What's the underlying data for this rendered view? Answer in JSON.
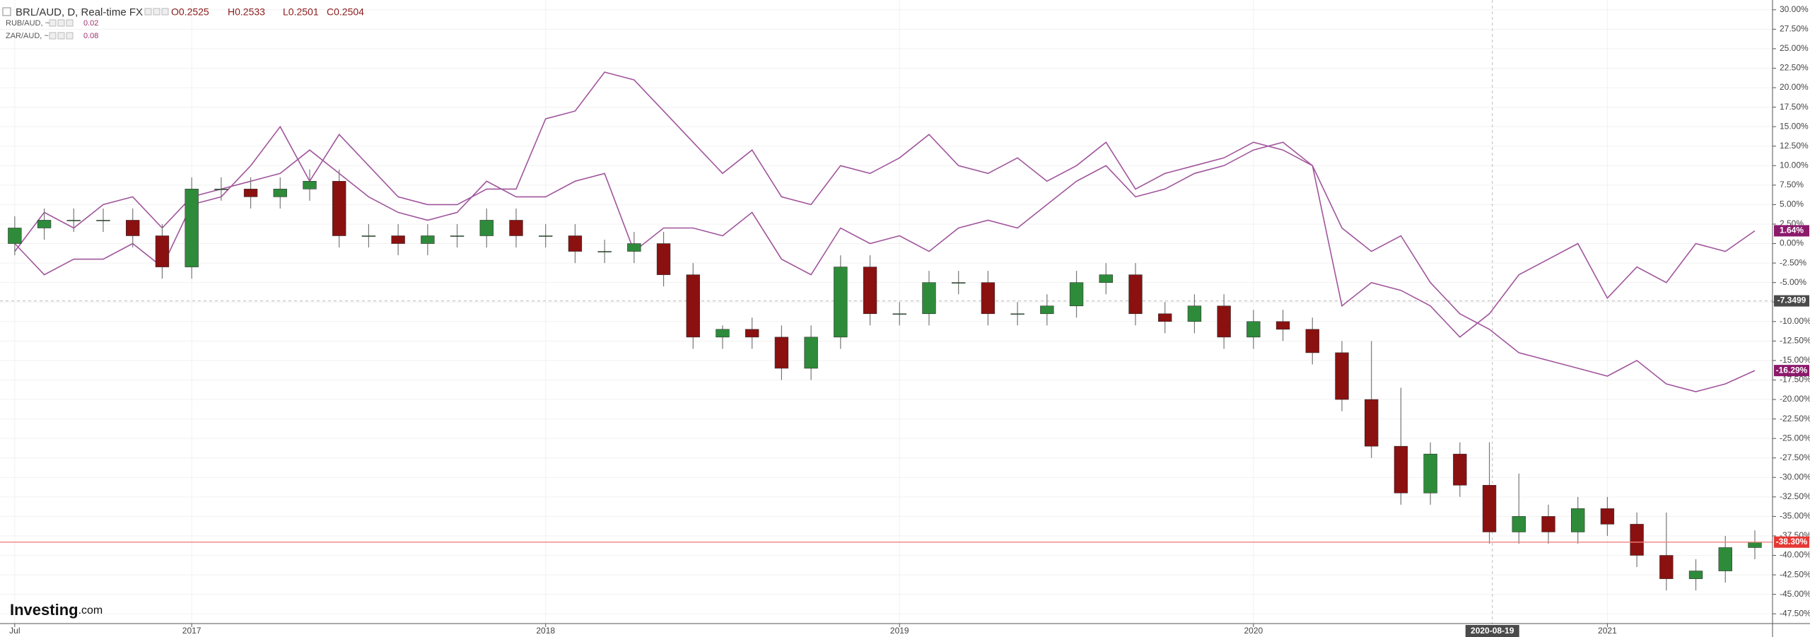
{
  "chart_data": {
    "type": "candlestick",
    "title": "BRL/AUD, D, Real-time FX",
    "ohlc_labels": [
      "O0.2525",
      "H0.2533",
      "L0.2501",
      "C0.2504"
    ],
    "logo": "Investing",
    "logo_suffix": ".com",
    "grid": true,
    "xlim": [
      -0.5,
      59.6
    ],
    "xticks": [
      {
        "value": 0,
        "label": "Jul"
      },
      {
        "value": 6,
        "label": "2017"
      },
      {
        "value": 18,
        "label": "2018"
      },
      {
        "value": 30,
        "label": "2019"
      },
      {
        "value": 42,
        "label": "2020"
      },
      {
        "value": 54,
        "label": "2021"
      }
    ],
    "ylim": [
      -48.75,
      31.25
    ],
    "yticks": [
      {
        "value": 30,
        "label": "30.00%"
      },
      {
        "value": 27.5,
        "label": "27.50%"
      },
      {
        "value": 25,
        "label": "25.00%"
      },
      {
        "value": 22.5,
        "label": "22.50%"
      },
      {
        "value": 20,
        "label": "20.00%"
      },
      {
        "value": 17.5,
        "label": "17.50%"
      },
      {
        "value": 15,
        "label": "15.00%"
      },
      {
        "value": 12.5,
        "label": "12.50%"
      },
      {
        "value": 10,
        "label": "10.00%"
      },
      {
        "value": 7.5,
        "label": "7.50%"
      },
      {
        "value": 5,
        "label": "5.00%"
      },
      {
        "value": 2.5,
        "label": "2.50%"
      },
      {
        "value": 0,
        "label": "0.00%"
      },
      {
        "value": -2.5,
        "label": "-2.50%"
      },
      {
        "value": -5,
        "label": "-5.00%"
      },
      {
        "value": -7.5,
        "label": "-7.50%"
      },
      {
        "value": -10,
        "label": "-10.00%"
      },
      {
        "value": -12.5,
        "label": "-12.50%"
      },
      {
        "value": -15,
        "label": "-15.00%"
      },
      {
        "value": -17.5,
        "label": "-17.50%"
      },
      {
        "value": -20,
        "label": "-20.00%"
      },
      {
        "value": -22.5,
        "label": "-22.50%"
      },
      {
        "value": -25,
        "label": "-25.00%"
      },
      {
        "value": -27.5,
        "label": "-27.50%"
      },
      {
        "value": -30,
        "label": "-30.00%"
      },
      {
        "value": -32.5,
        "label": "-32.50%"
      },
      {
        "value": -35,
        "label": "-35.00%"
      },
      {
        "value": -37.5,
        "label": "-37.50%"
      },
      {
        "value": -40,
        "label": "-40.00%"
      },
      {
        "value": -42.5,
        "label": "-42.50%"
      },
      {
        "value": -45,
        "label": "-45.00%"
      },
      {
        "value": -47.5,
        "label": "-47.50%"
      }
    ],
    "candles": {
      "up_color": "#2e8b3a",
      "down_color": "#8b1010",
      "last_label": "-38.30%",
      "open": [
        0,
        2,
        3,
        3,
        3,
        1,
        -3,
        7,
        7,
        6,
        7,
        8,
        1,
        1,
        0,
        1,
        1,
        3,
        1,
        1,
        -1,
        -1,
        0,
        -4,
        -12,
        -11,
        -12,
        -16,
        -12,
        -3,
        -9,
        -9,
        -5,
        -5,
        -9,
        -9,
        -8,
        -5,
        -4,
        -9,
        -10,
        -8,
        -12,
        -10,
        -11,
        -14,
        -20,
        -26,
        -32,
        -27,
        -31,
        -37,
        -35,
        -37,
        -34,
        -36,
        -40,
        -43,
        -42,
        -39
      ],
      "high": [
        3.5,
        4.5,
        4.5,
        4.5,
        4.5,
        2.5,
        8.5,
        8.5,
        8.5,
        8.5,
        9.5,
        9.5,
        2.5,
        2.5,
        2.5,
        2.5,
        4.5,
        4.5,
        2.5,
        2.5,
        0.5,
        1.5,
        1.5,
        -2.5,
        -10.5,
        -9.5,
        -10.5,
        -10.5,
        -1.5,
        -1.5,
        -7.5,
        -3.5,
        -3.5,
        -3.5,
        -7.5,
        -6.5,
        -3.5,
        -2.5,
        -2.5,
        -7.5,
        -6.5,
        -6.5,
        -8.5,
        -8.5,
        -9.5,
        -12.5,
        -12.5,
        -18.5,
        -25.5,
        -25.5,
        -25.5,
        -29.5,
        -33.5,
        -32.5,
        -32.5,
        -34.5,
        -34.5,
        -40.5,
        -37.5,
        -36.8
      ],
      "low": [
        -1.5,
        0.5,
        1.5,
        1.5,
        -0.5,
        -4.5,
        -4.5,
        5.5,
        4.5,
        4.5,
        5.5,
        -0.5,
        -0.5,
        -1.5,
        -1.5,
        -0.5,
        -0.5,
        -0.5,
        -0.5,
        -2.5,
        -2.5,
        -2.5,
        -5.5,
        -13.5,
        -13.5,
        -13.5,
        -17.5,
        -17.5,
        -13.5,
        -10.5,
        -10.5,
        -10.5,
        -6.5,
        -10.5,
        -10.5,
        -10.5,
        -9.5,
        -6.5,
        -10.5,
        -11.5,
        -11.5,
        -13.5,
        -13.5,
        -12.5,
        -15.5,
        -21.5,
        -27.5,
        -33.5,
        -33.5,
        -32.5,
        -38.5,
        -38.5,
        -38.5,
        -38.5,
        -37.5,
        -41.5,
        -44.5,
        -44.5,
        -43.5,
        -40.5
      ],
      "close": [
        2,
        3,
        3,
        3,
        1,
        -3,
        7,
        7,
        6,
        7,
        8,
        1,
        1,
        0,
        1,
        1,
        3,
        1,
        1,
        -1,
        -1,
        0,
        -4,
        -12,
        -11,
        -12,
        -16,
        -12,
        -3,
        -9,
        -9,
        -5,
        -5,
        -9,
        -9,
        -8,
        -5,
        -4,
        -9,
        -10,
        -8,
        -12,
        -10,
        -11,
        -14,
        -20,
        -26,
        -32,
        -27,
        -31,
        -37,
        -35,
        -37,
        -34,
        -36,
        -40,
        -43,
        -42,
        -39,
        -38.3
      ]
    },
    "series": [
      {
        "name": "RUB/AUD, ~",
        "legend_value": "0.02",
        "color": "#a0559c",
        "last_label": "1.64%",
        "values": [
          -1,
          4,
          2,
          5,
          6,
          2,
          6,
          7,
          8,
          9,
          12,
          9,
          6,
          4,
          3,
          4,
          8,
          6,
          6,
          8,
          9,
          -1,
          2,
          2,
          1,
          4,
          -2,
          -4,
          2,
          0,
          1,
          -1,
          2,
          3,
          2,
          5,
          8,
          10,
          6,
          7,
          9,
          10,
          12,
          13,
          10,
          -8,
          -5,
          -6,
          -8,
          -12,
          -9,
          -4,
          -2,
          0,
          -7,
          -3,
          -5,
          0,
          -1,
          1.64
        ]
      },
      {
        "name": "ZAR/AUD, ~",
        "legend_value": "0.08",
        "color": "#a0559c",
        "last_label": "-16.29%",
        "values": [
          0,
          -4,
          -2,
          -2,
          0,
          -3,
          5,
          6,
          10,
          15,
          8,
          14,
          10,
          6,
          5,
          5,
          7,
          7,
          16,
          17,
          22,
          21,
          17,
          13,
          9,
          12,
          6,
          5,
          10,
          9,
          11,
          14,
          10,
          9,
          11,
          8,
          10,
          13,
          7,
          9,
          10,
          11,
          13,
          12,
          10,
          2,
          -1,
          1,
          -5,
          -9,
          -11,
          -14,
          -15,
          -16,
          -17,
          -15,
          -18,
          -19,
          -18,
          -16.29
        ]
      }
    ],
    "crosshair": {
      "x": 50.1,
      "x_label": "2020-08-19",
      "y": -7.3499
    }
  }
}
